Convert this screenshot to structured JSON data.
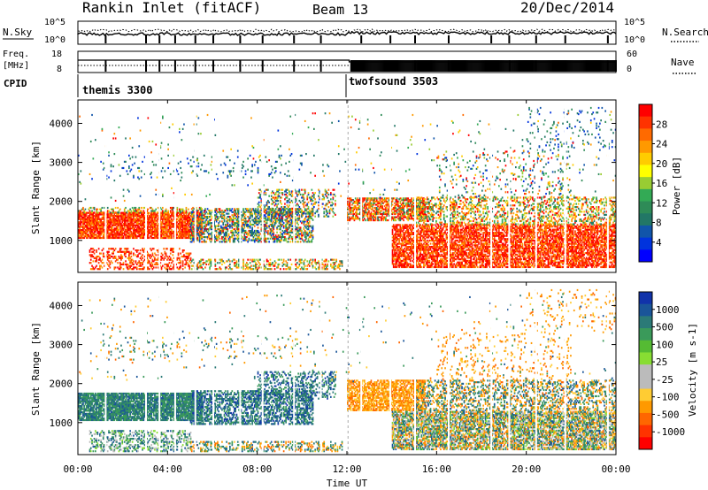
{
  "header": {
    "station": "Rankin Inlet (fitACF)",
    "beam": "Beam 13",
    "date": "20/Dec/2014"
  },
  "noise_panel": {
    "left_label": "N.Sky",
    "right_label": "N.Search",
    "left_ticks": [
      "10^5",
      "10^0"
    ],
    "right_ticks": [
      "10^5",
      "10^0"
    ]
  },
  "freq_panel": {
    "left_label_top": "Freq.",
    "left_label_unit": "[MHz]",
    "right_label": "Nave",
    "left_ticks": [
      "18",
      "8"
    ],
    "right_ticks": [
      "60",
      "0"
    ]
  },
  "cpid": {
    "label": "CPID",
    "modes": [
      {
        "name": "themis 3300",
        "start_hour": 0
      },
      {
        "name": "twofsound 3503",
        "start_hour": 12
      }
    ]
  },
  "time_axis": {
    "label": "Time UT",
    "ticks": [
      "00:00",
      "04:00",
      "08:00",
      "12:00",
      "16:00",
      "20:00",
      "00:00"
    ],
    "range_hours": [
      0,
      24
    ]
  },
  "chart_data": [
    {
      "type": "heatmap",
      "quantity": "power",
      "ylabel": "Slant Range [km]",
      "y_ticks": [
        1000,
        2000,
        3000,
        4000
      ],
      "ylim": [
        180,
        4600
      ],
      "xlim": [
        0,
        24
      ],
      "colorbar_label": "Power [dB]",
      "colorbar_ticks": [
        "28",
        "24",
        "20",
        "16",
        "12",
        "8",
        "4"
      ],
      "colorbar_colors": [
        "#ff0000",
        "#ff3300",
        "#ff6a00",
        "#ff9900",
        "#ffcc00",
        "#ffff00",
        "#99cc33",
        "#33aa55",
        "#2e8b57",
        "#227766",
        "#1155aa",
        "#0033dd",
        "#0000ff"
      ]
    },
    {
      "type": "heatmap",
      "quantity": "velocity",
      "ylabel": "Slant Range [km]",
      "y_ticks": [
        1000,
        2000,
        3000,
        4000
      ],
      "ylim": [
        180,
        4600
      ],
      "xlim": [
        0,
        24
      ],
      "colorbar_label": "Velocity [m s-1]",
      "colorbar_ticks": [
        "1000",
        "500",
        "100",
        "25",
        "-25",
        "-100",
        "-500",
        "-1000"
      ],
      "colorbar_colors": [
        "#1133aa",
        "#1a5599",
        "#2b7a77",
        "#3a9a5a",
        "#55bb33",
        "#88dd33",
        "#bbbbbb",
        "#bbbbbb",
        "#ffcc33",
        "#ff9900",
        "#ff6600",
        "#ff3300",
        "#ff0000"
      ]
    }
  ]
}
